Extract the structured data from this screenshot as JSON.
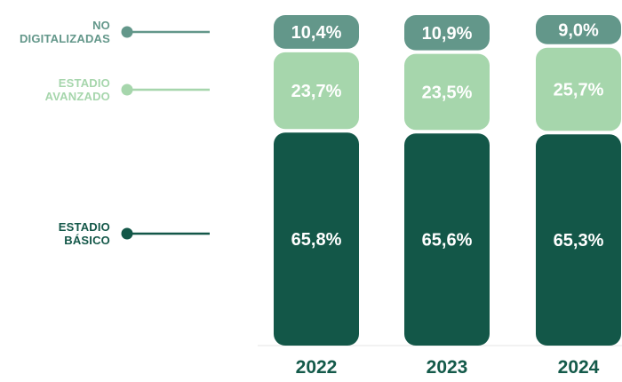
{
  "chart_data": {
    "type": "bar",
    "stacked": true,
    "orientation": "vertical",
    "unit": "%",
    "categories": [
      "2022",
      "2023",
      "2024"
    ],
    "series": [
      {
        "name": "ESTADIO BÁSICO",
        "label_lines": [
          "ESTADIO",
          "BÁSICO"
        ],
        "color": "#135748",
        "values": [
          65.8,
          65.6,
          65.3
        ],
        "value_labels": [
          "65,8%",
          "65,6%",
          "65,3%"
        ]
      },
      {
        "name": "ESTADIO AVANZADO",
        "label_lines": [
          "ESTADIO",
          "AVANZADO"
        ],
        "color": "#a6d6ac",
        "values": [
          23.7,
          23.5,
          25.7
        ],
        "value_labels": [
          "23,7%",
          "23,5%",
          "25,7%"
        ]
      },
      {
        "name": "NO DIGITALIZADAS",
        "label_lines": [
          "NO",
          "DIGITALIZADAS"
        ],
        "color": "#63978a",
        "values": [
          10.4,
          10.9,
          9.0
        ],
        "value_labels": [
          "10,4%",
          "10,9%",
          "9,0%"
        ]
      }
    ],
    "legend_colors": [
      "#135748",
      "#a6d6ac",
      "#63978a"
    ],
    "legend_position": "left",
    "grid": false,
    "title": "",
    "xlabel": "",
    "ylabel": ""
  }
}
